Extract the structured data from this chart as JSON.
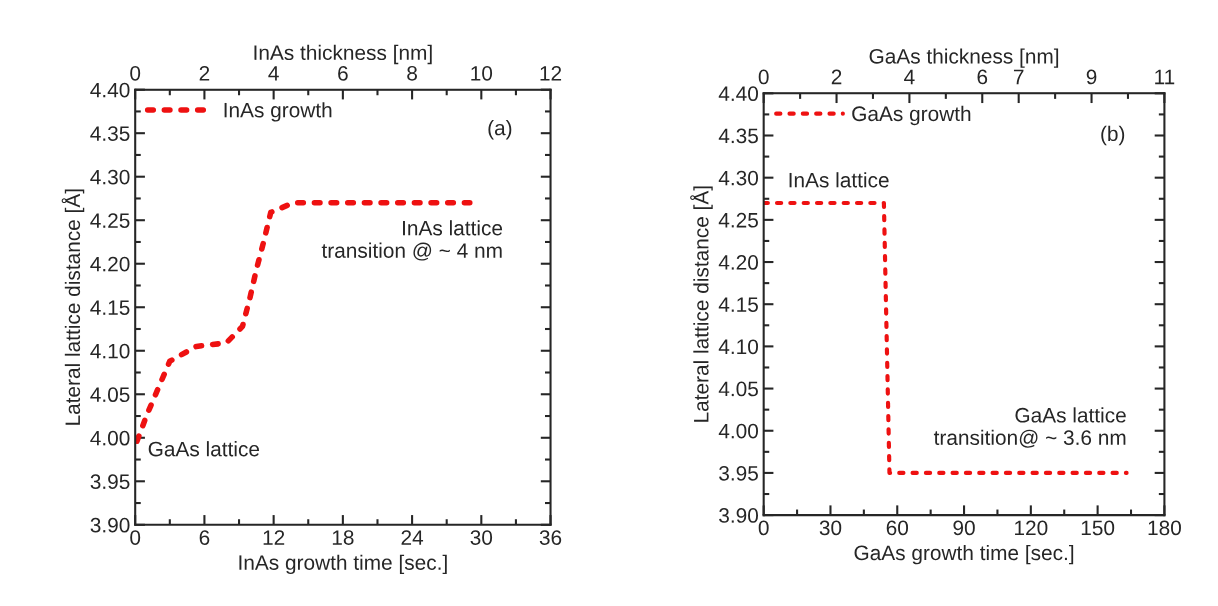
{
  "chart_data": [
    {
      "type": "line",
      "xlabel": "InAs growth time [sec.]",
      "ylabel": "Lateral lattice distance [Å]",
      "x2label": "InAs thickness [nm]",
      "series": [
        {
          "name": "InAs growth",
          "color": "#ee1111",
          "line_style": "dashed",
          "x": [
            0.15,
            1.0,
            2.0,
            3.0,
            5.3,
            7.9,
            9.3,
            9.95,
            10.5,
            11.15,
            11.75,
            13.7,
            16.3,
            18.9,
            21.5,
            24.1,
            26.6,
            29.0
          ],
          "values": [
            3.996,
            4.026,
            4.057,
            4.088,
            4.105,
            4.109,
            4.128,
            4.161,
            4.193,
            4.226,
            4.259,
            4.27,
            4.27,
            4.27,
            4.27,
            4.27,
            4.27,
            4.27
          ]
        }
      ],
      "xlim": [
        0,
        36
      ],
      "xticks": [
        0,
        6,
        12,
        18,
        24,
        30,
        36
      ],
      "x2lim": [
        0,
        12
      ],
      "x2ticks": [
        0,
        2,
        4,
        6,
        8,
        10,
        12
      ],
      "ylim": [
        3.9,
        4.4
      ],
      "yticks": [
        {
          "value": 3.9,
          "label": "3.90"
        },
        {
          "value": 3.95,
          "label": "3.95"
        },
        {
          "value": 4.0,
          "label": "4.00"
        },
        {
          "value": 4.05,
          "label": "4.05"
        },
        {
          "value": 4.1,
          "label": "4.10"
        },
        {
          "value": 4.15,
          "label": "4.15"
        },
        {
          "value": 4.2,
          "label": "4.20"
        },
        {
          "value": 4.25,
          "label": "4.25"
        },
        {
          "value": 4.3,
          "label": "4.30"
        },
        {
          "value": 4.35,
          "label": "4.35"
        },
        {
          "value": 4.4,
          "label": "4.40"
        }
      ],
      "annotations": [
        "(a)",
        "InAs lattice\ntransition @ ~ 4 nm",
        "GaAs lattice"
      ],
      "legend": "top left",
      "grid": false
    },
    {
      "type": "line",
      "xlabel": "GaAs growth time [sec.]",
      "ylabel": "Lateral lattice distance [Å]",
      "x2label": "GaAs thickness [nm]",
      "series": [
        {
          "name": "GaAs growth",
          "color": "#ee1111",
          "line_style": "dotted",
          "x": [
            0,
            54,
            56.5,
            163
          ],
          "values": [
            4.27,
            4.27,
            3.95,
            3.95
          ]
        }
      ],
      "xlim": [
        0,
        180
      ],
      "xticks": [
        0,
        30,
        60,
        90,
        120,
        150,
        180
      ],
      "x2lim": [
        0,
        11
      ],
      "x2ticks": [
        0,
        2,
        4,
        6,
        7,
        9,
        11
      ],
      "ylim": [
        3.9,
        4.4
      ],
      "yticks": [
        {
          "value": 3.9,
          "label": "3.90"
        },
        {
          "value": 3.95,
          "label": "3.95"
        },
        {
          "value": 4.0,
          "label": "4.00"
        },
        {
          "value": 4.05,
          "label": "4.05"
        },
        {
          "value": 4.1,
          "label": "4.10"
        },
        {
          "value": 4.15,
          "label": "4.15"
        },
        {
          "value": 4.2,
          "label": "4.20"
        },
        {
          "value": 4.25,
          "label": "4.25"
        },
        {
          "value": 4.3,
          "label": "4.30"
        },
        {
          "value": 4.35,
          "label": "4.35"
        },
        {
          "value": 4.4,
          "label": "4.40"
        }
      ],
      "annotations": [
        "(b)",
        "InAs lattice",
        "GaAs lattice\ntransition@ ~ 3.6 nm"
      ],
      "legend": "top left",
      "grid": false
    }
  ]
}
